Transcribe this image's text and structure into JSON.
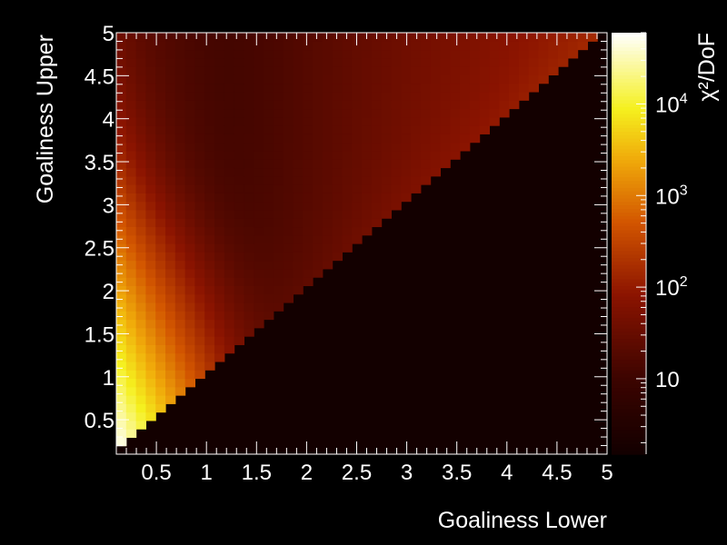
{
  "chart_data": {
    "type": "heatmap",
    "xlabel": "Goaliness Lower",
    "ylabel": "Goaliness Upper",
    "colorbar_label": "χ²/DoF",
    "xlim": [
      0.1,
      5.0
    ],
    "ylim": [
      0.1,
      5.0
    ],
    "bins": 50,
    "x_ticks": [
      "0.5",
      "1",
      "1.5",
      "2",
      "2.5",
      "3",
      "3.5",
      "4",
      "4.5",
      "5"
    ],
    "y_ticks": [
      "0.5",
      "1",
      "1.5",
      "2",
      "2.5",
      "3",
      "3.5",
      "4",
      "4.5",
      "5"
    ],
    "colorbar_log_scale": true,
    "colorbar_range": [
      1.5,
      60000
    ],
    "colorbar_ticks": [
      {
        "value": 10,
        "base": "10",
        "exp": ""
      },
      {
        "value": 100,
        "base": "10",
        "exp": "2"
      },
      {
        "value": 1000,
        "base": "10",
        "exp": "3"
      },
      {
        "value": 10000,
        "base": "10",
        "exp": "4"
      }
    ],
    "region_below_diagonal_value": 1.6,
    "sample_values": [
      {
        "lower": 0.15,
        "upper": 0.25,
        "chi2_dof": 50000
      },
      {
        "lower": 0.2,
        "upper": 0.5,
        "chi2_dof": 5000
      },
      {
        "lower": 0.3,
        "upper": 1.0,
        "chi2_dof": 1500
      },
      {
        "lower": 0.2,
        "upper": 1.5,
        "chi2_dof": 400
      },
      {
        "lower": 0.5,
        "upper": 1.5,
        "chi2_dof": 100
      },
      {
        "lower": 1.0,
        "upper": 2.0,
        "chi2_dof": 7
      },
      {
        "lower": 1.5,
        "upper": 4.5,
        "chi2_dof": 12
      },
      {
        "lower": 3.0,
        "upper": 4.0,
        "chi2_dof": 50
      },
      {
        "lower": 4.7,
        "upper": 4.9,
        "chi2_dof": 150
      }
    ],
    "colors": {
      "background": "#000000",
      "lowest": "#150000",
      "dark_red": "#5a0800",
      "orange": "#e07a00",
      "yellow": "#f0f020",
      "highest": "#ffffff"
    }
  }
}
